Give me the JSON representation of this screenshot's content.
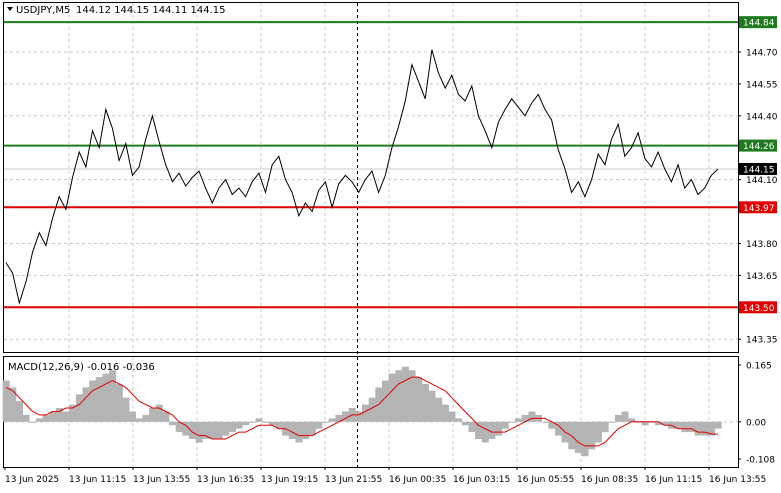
{
  "header": {
    "symbol": "USDJPY,M5",
    "ohlc": "144.12 144.15 144.11 144.15"
  },
  "macd": {
    "label": "MACD(12,26,9) -0.016 -0.036",
    "axis_labels": [
      "0.165",
      "0.00",
      "-0.108"
    ]
  },
  "colors": {
    "price_line": "#000000",
    "support": "#e00000",
    "resistance": "#1e7a1e",
    "current_price_tag": "#000000",
    "macd_histogram": "#b4b4b4",
    "macd_signal": "#e00000",
    "grid": "#c8c8c8",
    "separator": "#000000"
  },
  "chart_data": {
    "type": "line",
    "title": "USDJPY,M5",
    "price_axis": {
      "ylim": [
        143.29,
        144.93
      ],
      "tick_labels": [
        "144.70",
        "144.55",
        "144.40",
        "144.10",
        "143.80",
        "143.65",
        "143.35"
      ]
    },
    "levels": [
      {
        "label": "144.84",
        "value": 144.84,
        "kind": "resistance"
      },
      {
        "label": "144.26",
        "value": 144.26,
        "kind": "resistance"
      },
      {
        "label": "143.97",
        "value": 143.97,
        "kind": "support"
      },
      {
        "label": "143.50",
        "value": 143.5,
        "kind": "support"
      }
    ],
    "current_price": {
      "label": "144.15",
      "value": 144.15
    },
    "x_labels": [
      "13 Jun 2025",
      "13 Jun 11:15",
      "13 Jun 13:55",
      "13 Jun 16:35",
      "13 Jun 19:15",
      "13 Jun 21:55",
      "16 Jun 00:35",
      "16 Jun 03:15",
      "16 Jun 05:55",
      "16 Jun 08:35",
      "16 Jun 11:15",
      "16 Jun 13:55"
    ],
    "session_break_index": 5.5,
    "price_series": [
      143.71,
      143.66,
      143.52,
      143.62,
      143.76,
      143.85,
      143.79,
      143.92,
      144.02,
      143.96,
      144.11,
      144.23,
      144.16,
      144.33,
      144.25,
      144.43,
      144.34,
      144.19,
      144.27,
      144.12,
      144.16,
      144.29,
      144.4,
      144.28,
      144.17,
      144.09,
      144.13,
      144.07,
      144.11,
      144.14,
      144.06,
      143.99,
      144.06,
      144.1,
      144.03,
      144.06,
      144.02,
      144.09,
      144.13,
      144.04,
      144.17,
      144.21,
      144.1,
      144.04,
      143.93,
      143.99,
      143.95,
      144.05,
      144.09,
      143.97,
      144.08,
      144.12,
      144.09,
      144.04,
      144.1,
      144.14,
      144.04,
      144.12,
      144.25,
      144.35,
      144.47,
      144.64,
      144.56,
      144.48,
      144.71,
      144.6,
      144.53,
      144.59,
      144.5,
      144.47,
      144.54,
      144.4,
      144.33,
      144.25,
      144.37,
      144.43,
      144.48,
      144.44,
      144.4,
      144.46,
      144.5,
      144.43,
      144.38,
      144.24,
      144.15,
      144.04,
      144.09,
      144.02,
      144.1,
      144.22,
      144.17,
      144.29,
      144.36,
      144.21,
      144.25,
      144.32,
      144.2,
      144.16,
      144.23,
      144.15,
      144.09,
      144.17,
      144.06,
      144.1,
      144.03,
      144.06,
      144.12,
      144.15
    ],
    "macd": {
      "ylim": [
        -0.108,
        0.165
      ],
      "histogram": [
        0.12,
        0.1,
        0.06,
        0.02,
        0.0,
        0.01,
        0.02,
        0.03,
        0.04,
        0.03,
        0.05,
        0.08,
        0.1,
        0.12,
        0.13,
        0.14,
        0.15,
        0.11,
        0.07,
        0.03,
        0.01,
        0.02,
        0.04,
        0.05,
        0.03,
        -0.01,
        -0.03,
        -0.04,
        -0.05,
        -0.06,
        -0.05,
        -0.05,
        -0.05,
        -0.04,
        -0.03,
        -0.02,
        -0.01,
        0.0,
        0.01,
        0.0,
        -0.01,
        -0.02,
        -0.04,
        -0.05,
        -0.06,
        -0.05,
        -0.04,
        -0.02,
        0.0,
        0.01,
        0.02,
        0.03,
        0.04,
        0.03,
        0.05,
        0.07,
        0.1,
        0.12,
        0.14,
        0.15,
        0.16,
        0.15,
        0.13,
        0.11,
        0.09,
        0.07,
        0.05,
        0.03,
        0.01,
        -0.01,
        -0.03,
        -0.05,
        -0.06,
        -0.05,
        -0.04,
        -0.02,
        0.0,
        0.01,
        0.02,
        0.03,
        0.02,
        0.0,
        -0.02,
        -0.04,
        -0.06,
        -0.08,
        -0.09,
        -0.1,
        -0.08,
        -0.06,
        -0.03,
        0.0,
        0.02,
        0.03,
        0.01,
        0.0,
        -0.01,
        0.0,
        -0.01,
        -0.01,
        -0.02,
        -0.02,
        -0.03,
        -0.03,
        -0.04,
        -0.04,
        -0.04,
        -0.02
      ],
      "signal": [
        0.1,
        0.09,
        0.07,
        0.05,
        0.03,
        0.02,
        0.02,
        0.03,
        0.03,
        0.04,
        0.04,
        0.05,
        0.07,
        0.09,
        0.1,
        0.11,
        0.12,
        0.11,
        0.1,
        0.08,
        0.06,
        0.05,
        0.04,
        0.04,
        0.03,
        0.02,
        0.0,
        -0.01,
        -0.03,
        -0.04,
        -0.04,
        -0.05,
        -0.05,
        -0.05,
        -0.04,
        -0.03,
        -0.03,
        -0.02,
        -0.01,
        -0.01,
        -0.01,
        -0.02,
        -0.02,
        -0.03,
        -0.04,
        -0.04,
        -0.04,
        -0.03,
        -0.02,
        -0.01,
        0.0,
        0.01,
        0.02,
        0.02,
        0.03,
        0.04,
        0.05,
        0.07,
        0.09,
        0.11,
        0.12,
        0.13,
        0.13,
        0.12,
        0.11,
        0.1,
        0.09,
        0.07,
        0.05,
        0.03,
        0.01,
        -0.01,
        -0.02,
        -0.03,
        -0.03,
        -0.03,
        -0.02,
        -0.01,
        0.0,
        0.01,
        0.01,
        0.01,
        0.0,
        -0.01,
        -0.03,
        -0.04,
        -0.06,
        -0.07,
        -0.07,
        -0.07,
        -0.06,
        -0.04,
        -0.02,
        -0.01,
        0.0,
        0.0,
        0.0,
        0.0,
        0.0,
        -0.01,
        -0.01,
        -0.02,
        -0.02,
        -0.02,
        -0.03,
        -0.03,
        -0.035,
        -0.036
      ]
    }
  }
}
